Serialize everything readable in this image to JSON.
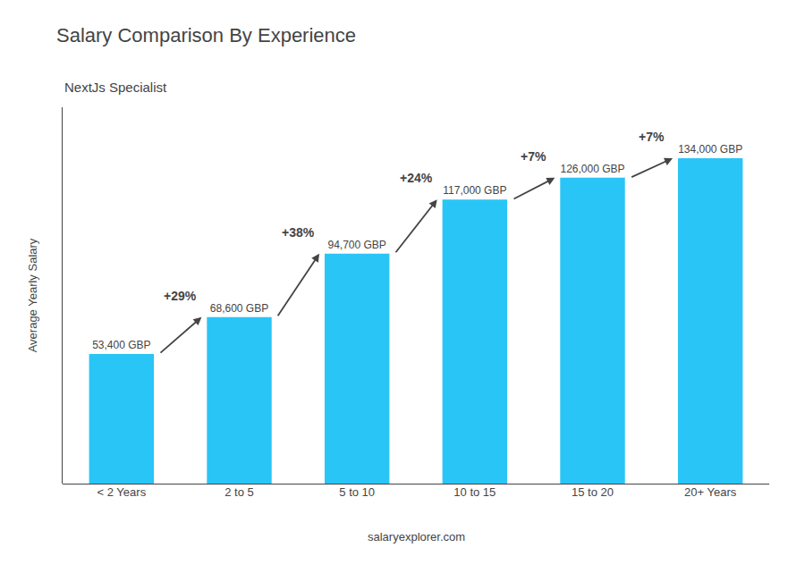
{
  "chart_data": {
    "type": "bar",
    "title": "Salary Comparison By Experience",
    "subtitle": "NextJs Specialist",
    "categories": [
      "< 2 Years",
      "2 to 5",
      "5 to 10",
      "10 to 15",
      "15 to 20",
      "20+ Years"
    ],
    "values": [
      53400,
      68600,
      94700,
      117000,
      126000,
      134000
    ],
    "data_labels": true,
    "value_labels": [
      "53,400 GBP",
      "68,600 GBP",
      "94,700 GBP",
      "117,000 GBP",
      "126,000 GBP",
      "134,000 GBP"
    ],
    "annotations": [
      "+29%",
      "+38%",
      "+24%",
      "+7%",
      "+7%"
    ],
    "note": "salaryexplorer.com",
    "ylabel": "Average Yearly Salary",
    "color": "#29c5f6",
    "ylim": [
      0,
      155000
    ],
    "tick_labels": "x",
    "grid": false
  }
}
